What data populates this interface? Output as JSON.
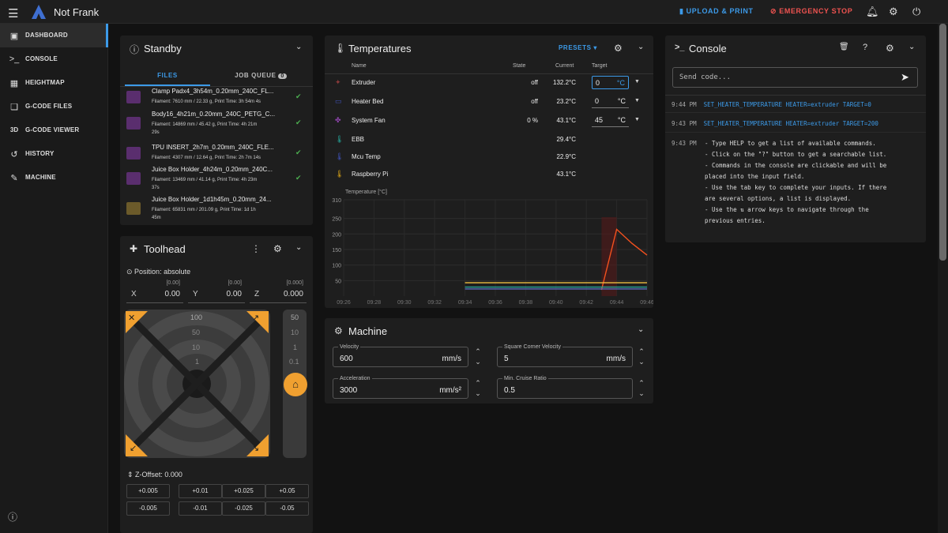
{
  "app": {
    "title": "Not Frank"
  },
  "topbar": {
    "upload_label": "UPLOAD & PRINT",
    "emergency_label": "EMERGENCY STOP"
  },
  "sidebar": {
    "items": [
      {
        "label": "DASHBOARD",
        "icon": "dashboard-icon",
        "glyph": "▣"
      },
      {
        "label": "CONSOLE",
        "icon": "console-icon",
        "glyph": ">_"
      },
      {
        "label": "HEIGHTMAP",
        "icon": "grid-icon",
        "glyph": "▦"
      },
      {
        "label": "G-CODE FILES",
        "icon": "file-icon",
        "glyph": "❏"
      },
      {
        "label": "G-CODE VIEWER",
        "icon": "3d-icon",
        "glyph": "3D"
      },
      {
        "label": "HISTORY",
        "icon": "history-icon",
        "glyph": "↺"
      },
      {
        "label": "MACHINE",
        "icon": "wrench-icon",
        "glyph": "✎"
      }
    ]
  },
  "standby": {
    "title": "Standby",
    "tabs": {
      "files": "FILES",
      "queue": "JOB QUEUE",
      "queue_count": "0"
    },
    "files": [
      {
        "name": "Clamp Padx4_3h54m_0.20mm_240C_FL...",
        "meta1": "Filament: 7610 mm / 22.33 g, Print Time: 3h 54m 4s",
        "meta2": ""
      },
      {
        "name": "Body16_4h21m_0.20mm_240C_PETG_C...",
        "meta1": "Filament: 14869 mm / 45.42 g, Print Time: 4h 21m",
        "meta2": "29s"
      },
      {
        "name": "TPU INSERT_2h7m_0.20mm_240C_FLE...",
        "meta1": "Filament: 4307 mm / 12.64 g, Print Time: 2h 7m 14s",
        "meta2": ""
      },
      {
        "name": "Juice Box Holder_4h24m_0.20mm_240C...",
        "meta1": "Filament: 13469 mm / 41.14 g, Print Time: 4h 23m",
        "meta2": "37s"
      },
      {
        "name": "Juice Box Holder_1d1h45m_0.20mm_24...",
        "meta1": "Filament: 65831 mm / 201.09 g, Print Time: 1d 1h",
        "meta2": "45m"
      }
    ]
  },
  "toolhead": {
    "title": "Toolhead",
    "position_label": "Position: absolute",
    "axes": [
      {
        "label": "X",
        "value": "0.00",
        "bracket": "[0.00]"
      },
      {
        "label": "Y",
        "value": "0.00",
        "bracket": "[0.00]"
      },
      {
        "label": "Z",
        "value": "0.000",
        "bracket": "[0.000]"
      }
    ],
    "xy_steps": [
      "100",
      "50",
      "10",
      "1"
    ],
    "z_steps": [
      "50",
      "10",
      "1",
      "0.1"
    ],
    "zoffset_label": "Z-Offset: 0.000",
    "zoffset_up": [
      "+0.005",
      "+0.01",
      "+0.025",
      "+0.05"
    ],
    "zoffset_down": [
      "-0.005",
      "-0.01",
      "-0.025",
      "-0.05"
    ]
  },
  "temperatures": {
    "title": "Temperatures",
    "presets_label": "PRESETS",
    "headers": {
      "name": "Name",
      "state": "State",
      "current": "Current",
      "target": "Target"
    },
    "rows": [
      {
        "name": "Extruder",
        "state": "off",
        "current": "132.2°C",
        "target": "0",
        "unit": "°C",
        "color": "#8b3a3a",
        "glyph": "✦"
      },
      {
        "name": "Heater Bed",
        "state": "off",
        "current": "23.2°C",
        "target": "0",
        "unit": "°C",
        "color": "#3f51b5",
        "glyph": "▭"
      },
      {
        "name": "System Fan",
        "state": "0 %",
        "current": "43.1°C",
        "target": "45",
        "unit": "°C",
        "color": "#8e44ad",
        "glyph": "✤"
      },
      {
        "name": "EBB",
        "state": "",
        "current": "29.4°C",
        "target": "",
        "unit": "",
        "color": "#26a69a",
        "glyph": "🌡"
      },
      {
        "name": "Mcu Temp",
        "state": "",
        "current": "22.9°C",
        "target": "",
        "unit": "",
        "color": "#3f51b5",
        "glyph": "🌡"
      },
      {
        "name": "Raspberry Pi",
        "state": "",
        "current": "43.1°C",
        "target": "",
        "unit": "",
        "color": "#d4a017",
        "glyph": "🌡"
      }
    ],
    "chart": {
      "ylabel": "Temperature [°C]",
      "yticks": [
        "310",
        "250",
        "200",
        "150",
        "100",
        "50"
      ],
      "xticks": [
        "09:26",
        "09:28",
        "09:30",
        "09:32",
        "09:34",
        "09:36",
        "09:38",
        "09:40",
        "09:42",
        "09:44",
        "09:46"
      ]
    }
  },
  "chart_data": {
    "type": "line",
    "title": "",
    "ylabel": "Temperature [°C]",
    "ylim": [
      0,
      310
    ],
    "x": [
      "09:34",
      "09:36",
      "09:38",
      "09:40",
      "09:42",
      "09:43",
      "09:44",
      "09:45",
      "09:46"
    ],
    "series": [
      {
        "name": "",
        "color": "#f4511e",
        "values": [
          null,
          null,
          null,
          null,
          null,
          20,
          215,
          170,
          132
        ]
      },
      {
        "name": "",
        "color": "#f0c040",
        "values": [
          43,
          43,
          43,
          43,
          43,
          43,
          43,
          43,
          43
        ]
      },
      {
        "name": "",
        "color": "#26a69a",
        "values": [
          29,
          29,
          29,
          29,
          29,
          29,
          29,
          29,
          29
        ]
      },
      {
        "name": "",
        "color": "#5c6bc0",
        "values": [
          23,
          23,
          23,
          23,
          23,
          23,
          23,
          23,
          23
        ]
      }
    ]
  },
  "machine": {
    "title": "Machine",
    "fields": [
      {
        "label": "Velocity",
        "value": "600",
        "unit": "mm/s"
      },
      {
        "label": "Square Corner Velocity",
        "value": "5",
        "unit": "mm/s"
      },
      {
        "label": "Acceleration",
        "value": "3000",
        "unit": "mm/s²"
      },
      {
        "label": "Min. Cruise Ratio",
        "value": "0.5",
        "unit": ""
      }
    ]
  },
  "console": {
    "title": "Console",
    "placeholder": "Send code...",
    "lines": [
      {
        "time": "9:44 PM",
        "text": "SET_HEATER_TEMPERATURE HEATER=extruder TARGET=0"
      },
      {
        "time": "9:43 PM",
        "text": "SET_HEATER_TEMPERATURE HEATER=extruder TARGET=200"
      }
    ],
    "help_time": "9:43 PM",
    "help_lines": [
      "- Type HELP to get a list of available commands.",
      "  - Click on the \"?\" button to get a searchable list.",
      "  - Commands in the console are clickable and will be",
      "  placed into the input field.",
      "  - Use the tab key to complete your inputs. If there",
      "  are several options, a list is displayed.",
      "  - Use the ⇅ arrow keys to navigate through the",
      "  previous entries."
    ]
  }
}
